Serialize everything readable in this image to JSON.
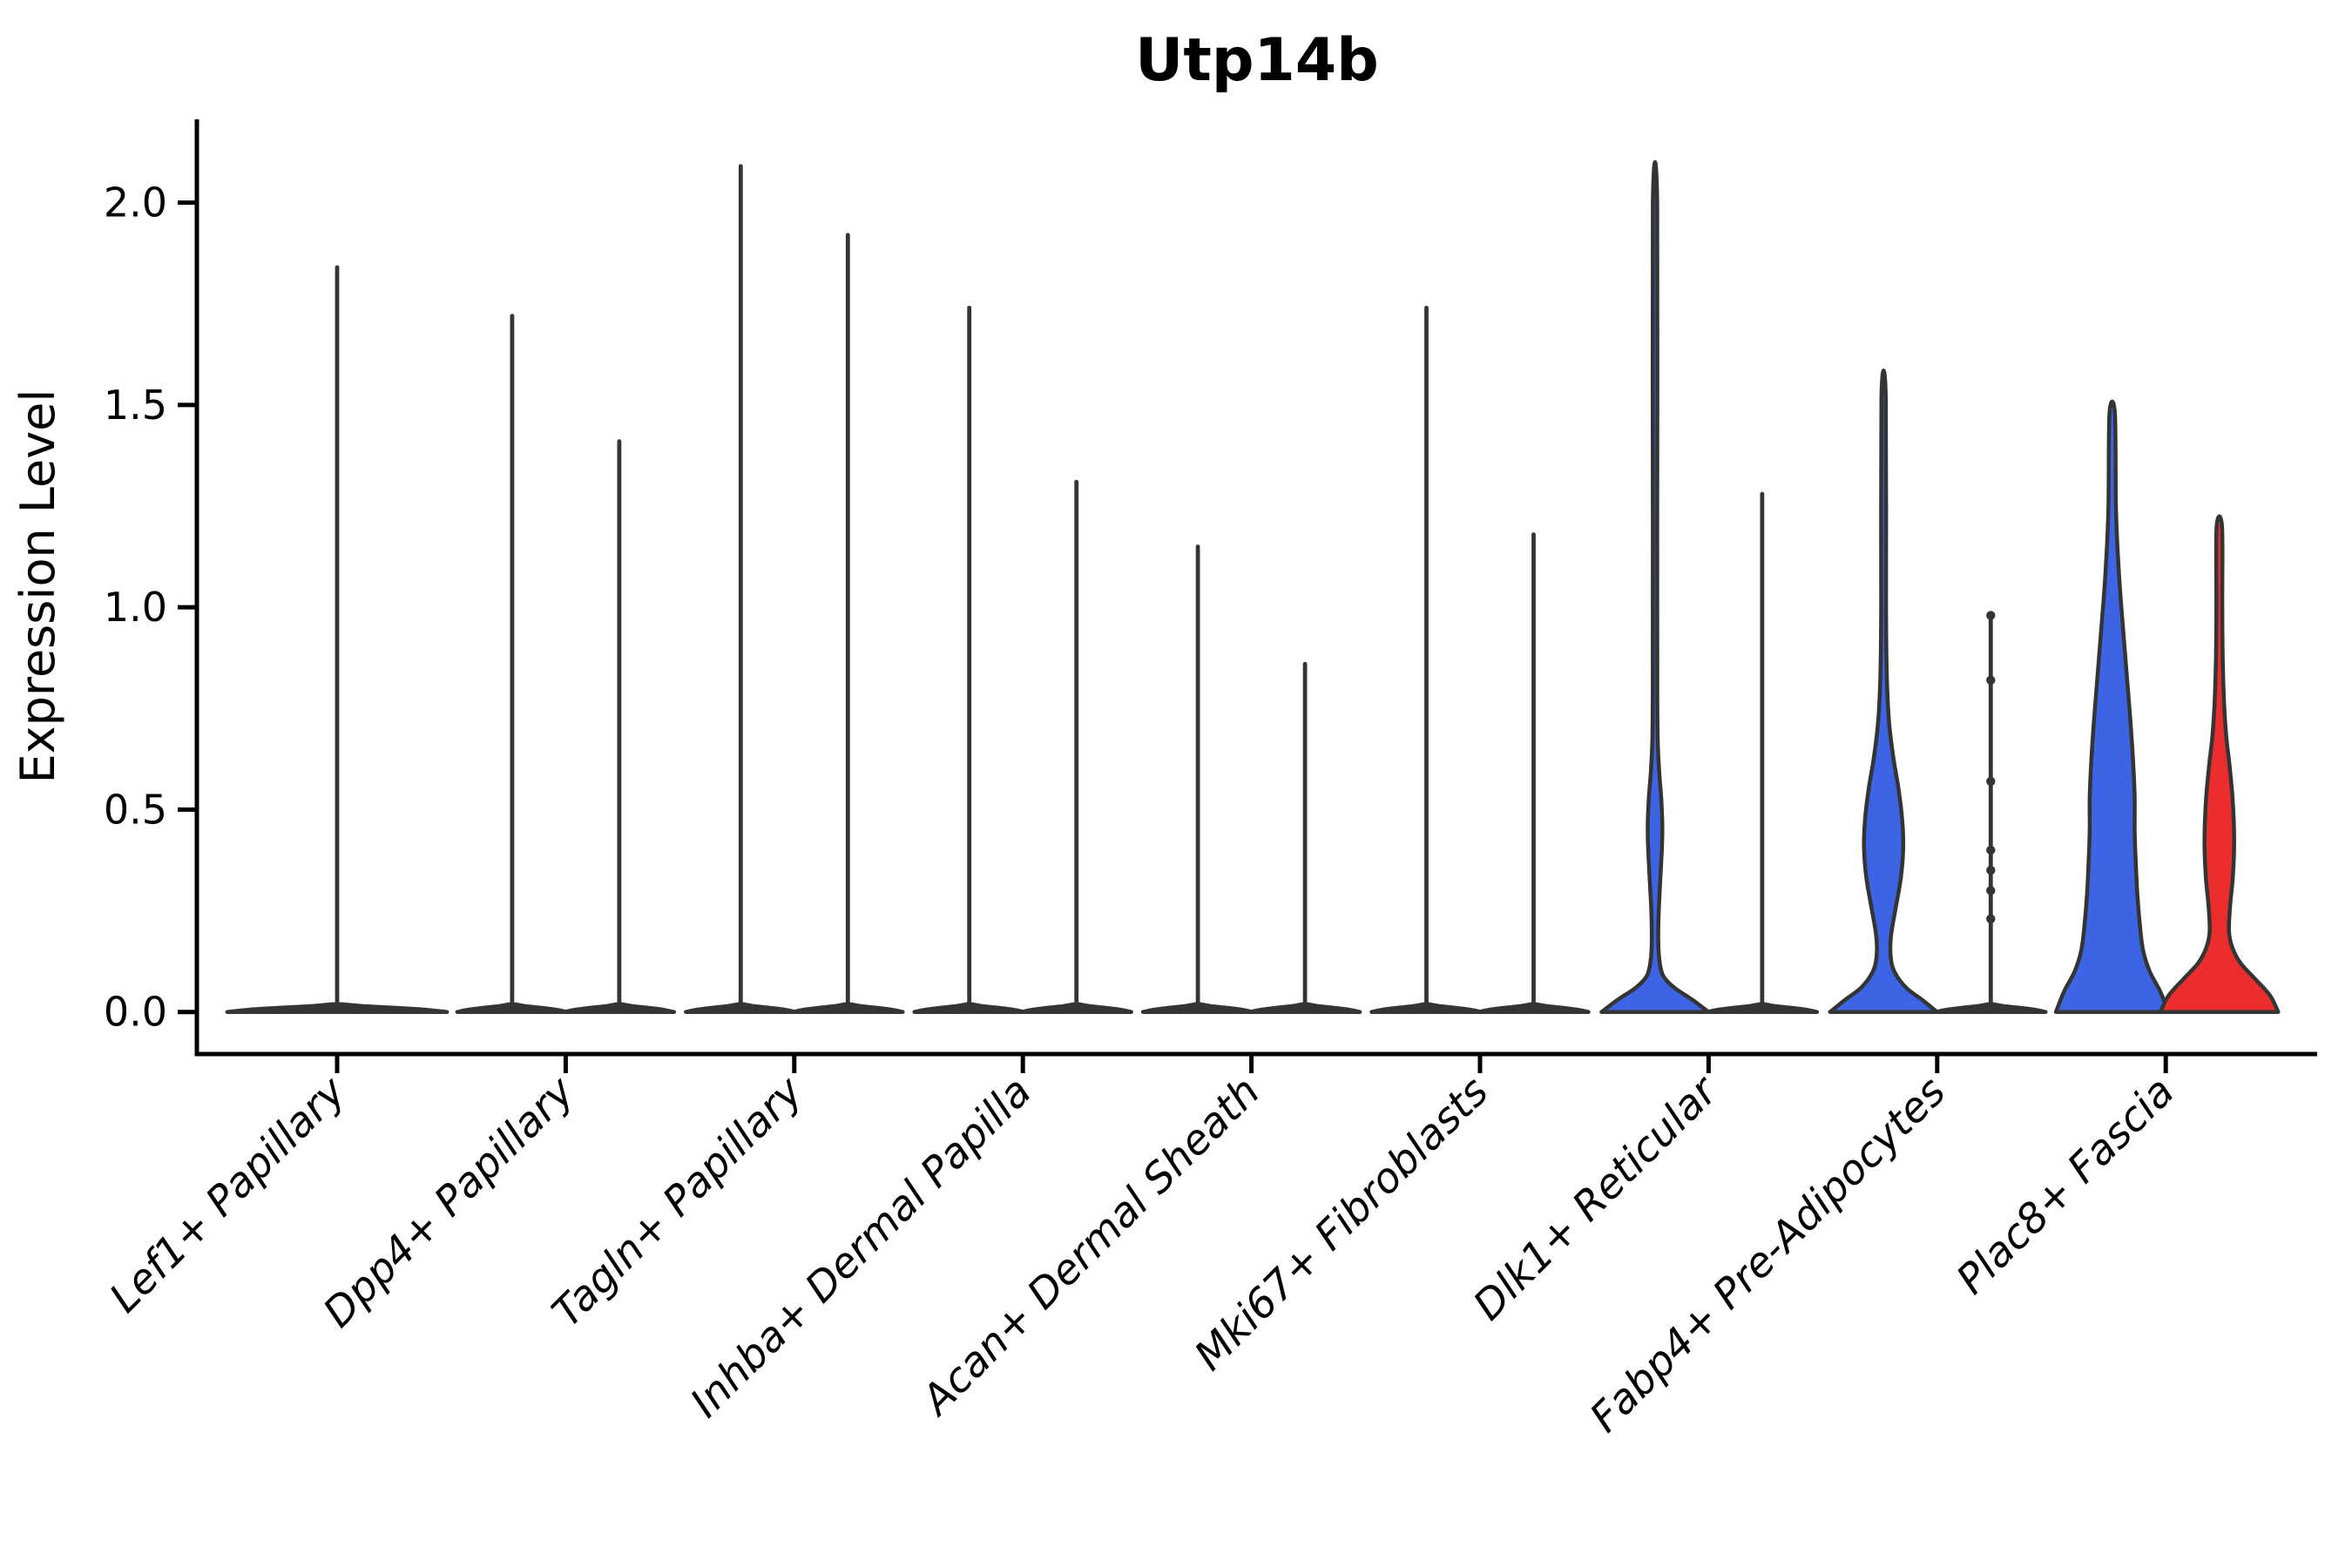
{
  "chart_data": {
    "type": "violin",
    "title": "Utp14b",
    "xlabel": "",
    "ylabel": "Expression Level",
    "ytick_labels": [
      "0.0",
      "0.5",
      "1.0",
      "1.5",
      "2.0"
    ],
    "ytick_values": [
      0.0,
      0.5,
      1.0,
      1.5,
      2.0
    ],
    "ylim": [
      -0.1,
      2.21
    ],
    "grid": false,
    "legend": false,
    "colors": {
      "group_blue": "#3C64E4",
      "group_red": "#EC2D2D",
      "violin_edge": "#343434",
      "axis": "#000000"
    },
    "categories": [
      "Lef1+ Papillary",
      "Dpp4+ Papillary",
      "Tagln+ Papillary",
      "Inhba+ Dermal Papilla",
      "Acan+ Dermal Sheath",
      "Mki67+ Fibroblasts",
      "Dlk1+ Reticular",
      "Fabp4+ Pre-Adipocytes",
      "Plac8+ Fascia"
    ],
    "violins": [
      {
        "category": "Lef1+ Papillary",
        "cat": 0,
        "side": "center",
        "style": "spike",
        "fill": "#343434",
        "max": 1.84,
        "pancake_scale": 2.0
      },
      {
        "category": "Dpp4+ Papillary",
        "cat": 1,
        "side": "left",
        "style": "spike",
        "fill": "#343434",
        "max": 1.72
      },
      {
        "category": "Dpp4+ Papillary",
        "cat": 1,
        "side": "right",
        "style": "spike",
        "fill": "#343434",
        "max": 1.41
      },
      {
        "category": "Tagln+ Papillary",
        "cat": 2,
        "side": "left",
        "style": "spike",
        "fill": "#343434",
        "max": 2.09
      },
      {
        "category": "Tagln+ Papillary",
        "cat": 2,
        "side": "right",
        "style": "spike",
        "fill": "#343434",
        "max": 1.92
      },
      {
        "category": "Inhba+ Dermal Papilla",
        "cat": 3,
        "side": "left",
        "style": "spike",
        "fill": "#343434",
        "max": 1.74
      },
      {
        "category": "Inhba+ Dermal Papilla",
        "cat": 3,
        "side": "right",
        "style": "spike",
        "fill": "#343434",
        "max": 1.31
      },
      {
        "category": "Acan+ Dermal Sheath",
        "cat": 4,
        "side": "left",
        "style": "spike",
        "fill": "#343434",
        "max": 1.15
      },
      {
        "category": "Acan+ Dermal Sheath",
        "cat": 4,
        "side": "right",
        "style": "spike",
        "fill": "#343434",
        "max": 0.86
      },
      {
        "category": "Mki67+ Fibroblasts",
        "cat": 5,
        "side": "left",
        "style": "spike",
        "fill": "#343434",
        "max": 1.74
      },
      {
        "category": "Mki67+ Fibroblasts",
        "cat": 5,
        "side": "right",
        "style": "spike",
        "fill": "#343434",
        "max": 1.18
      },
      {
        "category": "Dlk1+ Reticular",
        "cat": 6,
        "side": "left",
        "style": "body",
        "fill": "#3C64E4",
        "max": 2.0,
        "silhouette": [
          [
            0,
            1.0
          ],
          [
            0.03,
            0.7
          ],
          [
            0.06,
            0.36
          ],
          [
            0.09,
            0.15
          ],
          [
            0.13,
            0.08
          ],
          [
            0.18,
            0.06
          ],
          [
            0.25,
            0.07
          ],
          [
            0.33,
            0.1
          ],
          [
            0.41,
            0.13
          ],
          [
            0.47,
            0.135
          ],
          [
            0.53,
            0.115
          ],
          [
            0.59,
            0.08
          ],
          [
            0.67,
            0.05
          ],
          [
            0.8,
            0.042
          ],
          [
            1.2,
            0.04
          ],
          [
            2.0,
            0.04
          ]
        ]
      },
      {
        "category": "Dlk1+ Reticular",
        "cat": 6,
        "side": "right",
        "style": "spike",
        "fill": "#343434",
        "max": 1.28
      },
      {
        "category": "Fabp4+ Pre-Adipocytes",
        "cat": 7,
        "side": "left",
        "style": "body",
        "fill": "#3C64E4",
        "max": 1.52,
        "silhouette": [
          [
            0,
            1.0
          ],
          [
            0.03,
            0.72
          ],
          [
            0.06,
            0.42
          ],
          [
            0.1,
            0.2
          ],
          [
            0.14,
            0.13
          ],
          [
            0.19,
            0.14
          ],
          [
            0.26,
            0.23
          ],
          [
            0.33,
            0.32
          ],
          [
            0.4,
            0.365
          ],
          [
            0.47,
            0.35
          ],
          [
            0.55,
            0.28
          ],
          [
            0.63,
            0.18
          ],
          [
            0.72,
            0.1
          ],
          [
            0.83,
            0.06
          ],
          [
            1.0,
            0.045
          ],
          [
            1.52,
            0.04
          ]
        ]
      },
      {
        "category": "Fabp4+ Pre-Adipocytes",
        "cat": 7,
        "side": "right",
        "style": "spike",
        "fill": "#343434",
        "max": 0.98,
        "dots": [
          0.98,
          0.82,
          0.57,
          0.4,
          0.35,
          0.3,
          0.23
        ]
      },
      {
        "category": "Plac8+ Fascia",
        "cat": 8,
        "side": "left",
        "style": "body",
        "fill": "#3C64E4",
        "max": 1.48,
        "silhouette": [
          [
            0,
            1.05
          ],
          [
            0.05,
            0.9
          ],
          [
            0.1,
            0.7
          ],
          [
            0.15,
            0.58
          ],
          [
            0.21,
            0.52
          ],
          [
            0.29,
            0.47
          ],
          [
            0.37,
            0.44
          ],
          [
            0.45,
            0.42
          ],
          [
            0.53,
            0.42
          ],
          [
            0.62,
            0.39
          ],
          [
            0.72,
            0.34
          ],
          [
            0.82,
            0.28
          ],
          [
            0.92,
            0.22
          ],
          [
            1.02,
            0.16
          ],
          [
            1.12,
            0.11
          ],
          [
            1.25,
            0.07
          ],
          [
            1.48,
            0.05
          ]
        ]
      },
      {
        "category": "Plac8+ Fascia",
        "cat": 8,
        "side": "right",
        "style": "body",
        "fill": "#EC2D2D",
        "max": 1.2,
        "silhouette": [
          [
            0,
            1.1
          ],
          [
            0.04,
            0.95
          ],
          [
            0.08,
            0.68
          ],
          [
            0.12,
            0.4
          ],
          [
            0.16,
            0.24
          ],
          [
            0.2,
            0.18
          ],
          [
            0.26,
            0.2
          ],
          [
            0.33,
            0.25
          ],
          [
            0.4,
            0.275
          ],
          [
            0.47,
            0.27
          ],
          [
            0.54,
            0.24
          ],
          [
            0.61,
            0.19
          ],
          [
            0.68,
            0.13
          ],
          [
            0.76,
            0.09
          ],
          [
            0.86,
            0.065
          ],
          [
            1.0,
            0.055
          ],
          [
            1.2,
            0.05
          ]
        ]
      }
    ],
    "spike_pancake_silhouette": [
      [
        0,
        1.025
      ],
      [
        0.006,
        0.8
      ],
      [
        0.011,
        0.5
      ],
      [
        0.015,
        0.22
      ],
      [
        0.019,
        0.05
      ]
    ]
  }
}
